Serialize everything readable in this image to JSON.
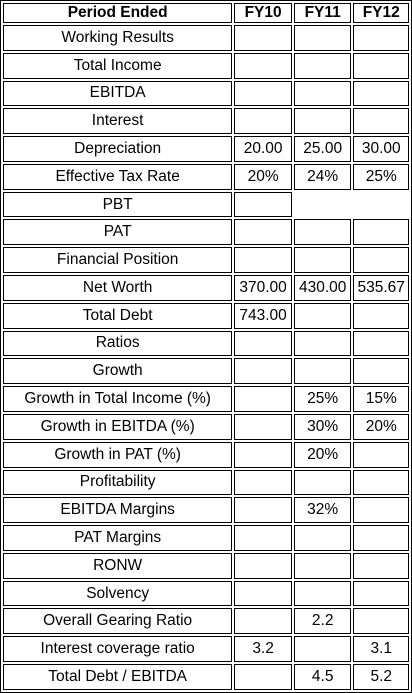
{
  "table": {
    "header": [
      "Period Ended",
      "FY10",
      "FY11",
      "FY12"
    ],
    "rows": [
      [
        "Working Results",
        null,
        null,
        null
      ],
      [
        "Total Income",
        null,
        null,
        null
      ],
      [
        "EBITDA",
        null,
        null,
        null
      ],
      [
        "Interest",
        null,
        null,
        null
      ],
      [
        "Depreciation",
        "20.00",
        "25.00",
        "30.00"
      ],
      [
        "Effective Tax Rate",
        "20%",
        "24%",
        "25%"
      ],
      [
        "PBT",
        null,
        null,
        null
      ],
      [
        "PAT",
        null,
        null,
        null
      ],
      [
        "Financial Position",
        null,
        null,
        null
      ],
      [
        "Net Worth",
        "370.00",
        "430.00",
        "535.67"
      ],
      [
        "Total Debt",
        "743.00",
        null,
        null
      ],
      [
        "Ratios",
        null,
        null,
        null
      ],
      [
        "Growth",
        null,
        null,
        null
      ],
      [
        "Growth in Total Income (%)",
        null,
        "25%",
        "15%"
      ],
      [
        "Growth in EBITDA (%)",
        null,
        "30%",
        "20%"
      ],
      [
        "Growth in PAT (%)",
        null,
        "20%",
        null
      ],
      [
        "Profitability",
        null,
        null,
        null
      ],
      [
        "EBITDA Margins",
        null,
        "32%",
        null
      ],
      [
        "PAT Margins",
        null,
        null,
        null
      ],
      [
        "RONW",
        null,
        null,
        null
      ],
      [
        "Solvency",
        null,
        null,
        null
      ],
      [
        "Overall Gearing Ratio",
        null,
        "2.2",
        null
      ],
      [
        "Interest coverage ratio",
        "3.2",
        null,
        "3.1"
      ],
      [
        "Total Debt / EBITDA",
        null,
        "4.5",
        "5.2"
      ]
    ]
  }
}
